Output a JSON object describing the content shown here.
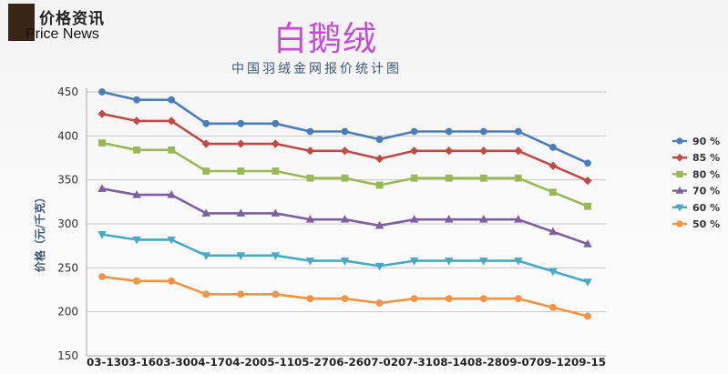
{
  "header": {
    "logo_cn": "价格资讯",
    "logo_en": "Price News",
    "title": "白鹅绒",
    "subtitle": "中国羽绒金网报价统计图"
  },
  "chart_data": {
    "type": "line",
    "ylabel": "价格（元/千克）",
    "ylim": [
      150,
      450
    ],
    "yticks": [
      150,
      200,
      250,
      300,
      350,
      400,
      450
    ],
    "x": [
      "03-13",
      "03-16",
      "03-30",
      "04-17",
      "04-20",
      "05-11",
      "05-27",
      "06-26",
      "07-02",
      "07-31",
      "08-14",
      "08-28",
      "09-07",
      "09-12",
      "09-15"
    ],
    "x_tick_text": "03-1303-1603-3004-1704-2005-1105-2706-2607-0207-3108-1408-2809-0709-1209-15",
    "grid": "horizontal",
    "legend_position": "right",
    "series": [
      {
        "name": "90 %",
        "color": "#4a7ebb",
        "marker": "circle",
        "values": [
          450,
          441,
          441,
          414,
          414,
          414,
          405,
          405,
          396,
          405,
          405,
          405,
          405,
          387,
          369
        ]
      },
      {
        "name": "85 %",
        "color": "#be4b48",
        "marker": "diamond",
        "values": [
          425,
          417,
          417,
          391,
          391,
          391,
          383,
          383,
          374,
          383,
          383,
          383,
          383,
          366,
          349
        ]
      },
      {
        "name": "80 %",
        "color": "#98b954",
        "marker": "square",
        "values": [
          392,
          384,
          384,
          360,
          360,
          360,
          352,
          352,
          344,
          352,
          352,
          352,
          352,
          336,
          320
        ]
      },
      {
        "name": "70 %",
        "color": "#7d60a0",
        "marker": "triangle-up",
        "values": [
          340,
          333,
          333,
          312,
          312,
          312,
          305,
          305,
          298,
          305,
          305,
          305,
          305,
          291,
          277
        ]
      },
      {
        "name": "60 %",
        "color": "#46aac5",
        "marker": "triangle-down",
        "values": [
          288,
          282,
          282,
          264,
          264,
          264,
          258,
          258,
          252,
          258,
          258,
          258,
          258,
          246,
          234
        ]
      },
      {
        "name": "50 %",
        "color": "#f69240",
        "marker": "circle",
        "values": [
          240,
          235,
          235,
          220,
          220,
          220,
          215,
          215,
          210,
          215,
          215,
          215,
          215,
          205,
          195
        ]
      }
    ]
  }
}
